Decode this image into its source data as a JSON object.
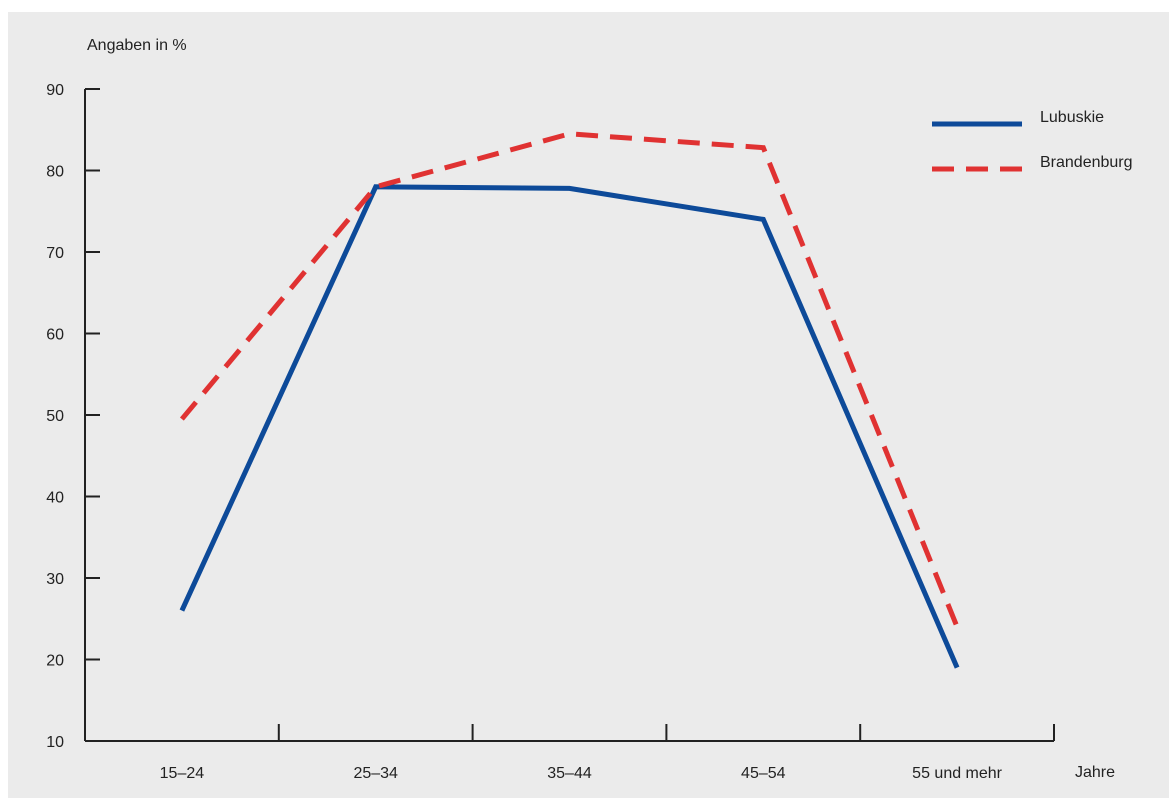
{
  "chart_data": {
    "type": "line",
    "ylabel": "Angaben in %",
    "xlabel": "Jahre",
    "categories": [
      "15–24",
      "25–34",
      "35–44",
      "45–54",
      "55 und mehr"
    ],
    "ylim": [
      10,
      90
    ],
    "yticks": [
      "10",
      "20",
      "30",
      "40",
      "50",
      "60",
      "70",
      "80",
      "90"
    ],
    "grid": false,
    "legend_position": "top-right",
    "series": [
      {
        "name": "Lubuskie",
        "values": [
          26,
          78,
          77.8,
          74,
          19
        ],
        "color": "#0d4a99",
        "style": "solid"
      },
      {
        "name": "Brandenburg",
        "values": [
          49.5,
          78,
          84.5,
          82.8,
          24
        ],
        "color": "#e03232",
        "style": "dashed"
      }
    ]
  }
}
